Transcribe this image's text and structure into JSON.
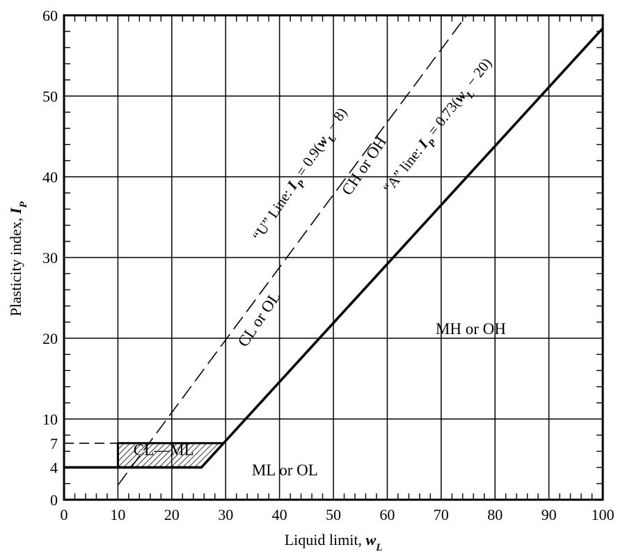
{
  "chart_data": {
    "type": "line",
    "title": "",
    "xlabel": "Liquid limit, w_L",
    "ylabel": "Plasticity index, I_P",
    "xlim": [
      0,
      100
    ],
    "ylim": [
      0,
      60
    ],
    "x_ticks": [
      0,
      10,
      20,
      30,
      40,
      50,
      60,
      70,
      80,
      90,
      100
    ],
    "y_ticks": [
      0,
      4,
      7,
      10,
      20,
      30,
      40,
      50,
      60
    ],
    "x_tick_labels": [
      "0",
      "10",
      "20",
      "30",
      "40",
      "50",
      "60",
      "70",
      "80",
      "90",
      "100"
    ],
    "y_tick_labels": [
      "0",
      "4",
      "7",
      "10",
      "20",
      "30",
      "40",
      "50",
      "60"
    ],
    "grid": true,
    "series": [
      {
        "name": "“A” line: I_P = 0.73(w_L − 20)",
        "style": "solid",
        "x": [
          0,
          25.5,
          29.6,
          100
        ],
        "y": [
          4,
          4,
          7,
          58.4
        ]
      },
      {
        "name": "“U” Line: I_P = 0.9(w_L − 8)",
        "style": "dashed",
        "x": [
          10,
          74.7
        ],
        "y": [
          1.8,
          60
        ]
      },
      {
        "name": "",
        "style": "dashed",
        "x": [
          0,
          10
        ],
        "y": [
          7,
          7
        ]
      }
    ],
    "regions": [
      {
        "label": "CL—ML",
        "hatched": true,
        "polygon": [
          [
            10,
            4
          ],
          [
            25.5,
            4
          ],
          [
            29.6,
            7
          ],
          [
            10,
            7
          ]
        ]
      }
    ],
    "annotations": [
      {
        "text": "CH or OH",
        "x": 56.5,
        "y": 41,
        "rotation": -56
      },
      {
        "text": "CL or OL",
        "x": 37,
        "y": 22,
        "rotation": -56
      },
      {
        "text": "MH or OH",
        "x": 75.5,
        "y": 20.5,
        "rotation": 0
      },
      {
        "text": "ML or OL",
        "x": 41,
        "y": 3,
        "rotation": 0
      },
      {
        "text": "CL—ML",
        "x": 18.5,
        "y": 5.5,
        "rotation": 0
      },
      {
        "text": "“U” Line: I_P = 0.9(w_L − 8)",
        "x": 44.5,
        "y": 40,
        "rotation": -56
      },
      {
        "text": "“A” line: I_P = 0.73(w_L − 20)",
        "x": 70,
        "y": 46,
        "rotation": -52
      }
    ]
  },
  "labels": {
    "xlabel_main": "Liquid limit, ",
    "xlabel_var": "w",
    "xlabel_sub": "L",
    "ylabel_main": "Plasticity index, ",
    "ylabel_var": "I",
    "ylabel_sub": "P",
    "region_ch_oh": "CH or OH",
    "region_cl_ol": "CL or OL",
    "region_mh_oh": "MH or OH",
    "region_ml_ol": "ML or OL",
    "region_cl_ml": "CL—ML",
    "u_line_pre": "“U” Line: ",
    "u_line_I": "I",
    "u_line_sub": "P",
    "u_line_mid": " = 0.9(",
    "u_line_w": "w",
    "u_line_wsub": "L",
    "u_line_end": " − 8)",
    "a_line_pre": "“A” line: ",
    "a_line_I": "I",
    "a_line_sub": "P",
    "a_line_mid": " = 0.73(",
    "a_line_w": "w",
    "a_line_wsub": "L",
    "a_line_end": " − 20)"
  }
}
